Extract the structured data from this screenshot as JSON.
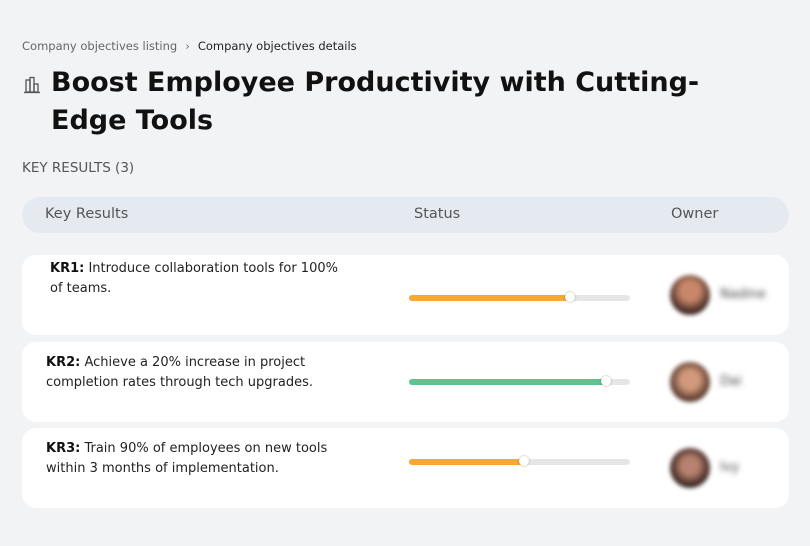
{
  "breadcrumb": [
    "Company objectives listing",
    "Company objectives details"
  ],
  "title": "Boost Employee Productivity with Cutting-Edge Tools",
  "section_label": "KEY RESULTS (3)",
  "table": {
    "headers": [
      "Key Results",
      "Status",
      "Owner"
    ],
    "rows": [
      {
        "label": "KR1:",
        "text": "Introduce collaboration tools for 100% of teams.",
        "progress": 73,
        "color": "#f8a832",
        "owner": "Nadine"
      },
      {
        "label": "KR2:",
        "text": "Achieve a 20% increase in project completion rates through tech upgrades.",
        "progress": 89,
        "color": "#5cc48c",
        "owner": "Dai"
      },
      {
        "label": "KR3:",
        "text": "Train 90% of employees on new tools within 3 months of implementation.",
        "progress": 52,
        "color": "#f8a832",
        "owner": "Ivy"
      }
    ]
  }
}
